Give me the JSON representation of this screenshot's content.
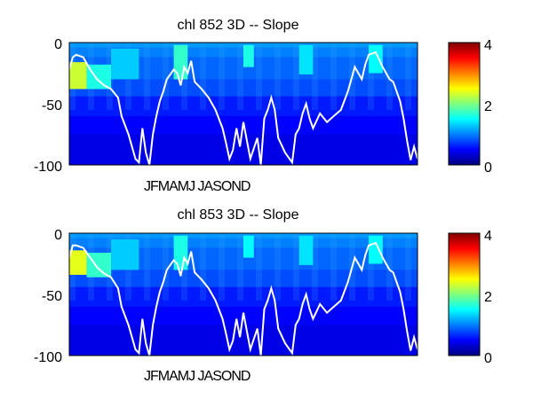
{
  "chart_data": [
    {
      "type": "heatmap",
      "title": "chl  852 3D    -- Slope",
      "xlabel": "JFMAMJ JASOND",
      "y_ticks": [
        0,
        -50,
        -100
      ],
      "ylim": [
        -100,
        0
      ],
      "colorbar": {
        "colormap": "jet",
        "range": [
          0,
          4
        ],
        "ticks": [
          0,
          2,
          4
        ]
      },
      "grid": false,
      "heat": {
        "base_value": 0.7,
        "depth_bands": [
          {
            "from": 0,
            "to": -4,
            "value": 1.1
          },
          {
            "from": -4,
            "to": -12,
            "value": 1.0
          },
          {
            "from": -12,
            "to": -30,
            "value": 0.9
          },
          {
            "from": -30,
            "to": -44,
            "value": 0.8
          },
          {
            "from": -44,
            "to": -60,
            "value": 0.6
          },
          {
            "from": -60,
            "to": -75,
            "value": 0.5
          },
          {
            "from": -75,
            "to": -100,
            "value": 0.4
          }
        ],
        "hotspots": [
          {
            "x0": 0,
            "x1": 0.05,
            "y0": -16,
            "y1": -38,
            "value": 2.3
          },
          {
            "x0": 0.05,
            "x1": 0.12,
            "y0": -18,
            "y1": -38,
            "value": 1.6
          },
          {
            "x0": 0.12,
            "x1": 0.2,
            "y0": -5,
            "y1": -30,
            "value": 1.3
          },
          {
            "x0": 0.3,
            "x1": 0.34,
            "y0": -2,
            "y1": -30,
            "value": 1.7
          },
          {
            "x0": 0.5,
            "x1": 0.53,
            "y0": -2,
            "y1": -20,
            "value": 1.6
          },
          {
            "x0": 0.66,
            "x1": 0.7,
            "y0": -2,
            "y1": -26,
            "value": 1.4
          },
          {
            "x0": 0.86,
            "x1": 0.9,
            "y0": -2,
            "y1": -25,
            "value": 1.5
          }
        ]
      },
      "line": {
        "color": "#ffffff",
        "x": [
          0,
          0.01,
          0.02,
          0.04,
          0.06,
          0.08,
          0.1,
          0.12,
          0.14,
          0.15,
          0.17,
          0.19,
          0.2,
          0.21,
          0.22,
          0.23,
          0.24,
          0.25,
          0.26,
          0.27,
          0.28,
          0.3,
          0.31,
          0.32,
          0.33,
          0.34,
          0.35,
          0.36,
          0.38,
          0.4,
          0.42,
          0.44,
          0.45,
          0.46,
          0.47,
          0.48,
          0.49,
          0.5,
          0.52,
          0.54,
          0.55,
          0.56,
          0.57,
          0.58,
          0.59,
          0.6,
          0.62,
          0.64,
          0.65,
          0.66,
          0.67,
          0.68,
          0.69,
          0.7,
          0.72,
          0.74,
          0.76,
          0.78,
          0.8,
          0.82,
          0.83,
          0.84,
          0.85,
          0.86,
          0.88,
          0.9,
          0.92,
          0.93,
          0.95,
          0.96,
          0.97,
          0.98,
          0.99,
          1
        ],
        "y": [
          -22,
          -12,
          -10,
          -12,
          -22,
          -30,
          -35,
          -38,
          -45,
          -60,
          -75,
          -95,
          -98,
          -70,
          -90,
          -100,
          -75,
          -60,
          -48,
          -40,
          -30,
          -22,
          -25,
          -35,
          -20,
          -25,
          -15,
          -32,
          -38,
          -45,
          -55,
          -70,
          -82,
          -95,
          -88,
          -70,
          -85,
          -65,
          -95,
          -78,
          -100,
          -62,
          -55,
          -45,
          -55,
          -78,
          -90,
          -98,
          -75,
          -70,
          -58,
          -50,
          -62,
          -70,
          -58,
          -65,
          -60,
          -55,
          -40,
          -20,
          -25,
          -30,
          -18,
          -10,
          -8,
          -20,
          -30,
          -32,
          -48,
          -62,
          -80,
          -96,
          -85,
          -95
        ]
      }
    },
    {
      "type": "heatmap",
      "title": "chl  853 3D    -- Slope",
      "xlabel": "JFMAMJ JASOND",
      "y_ticks": [
        0,
        -50,
        -100
      ],
      "ylim": [
        -100,
        0
      ],
      "colorbar": {
        "colormap": "jet",
        "range": [
          0,
          4
        ],
        "ticks": [
          0,
          2,
          4
        ]
      },
      "grid": false,
      "heat": {
        "base_value": 0.7,
        "depth_bands": [
          {
            "from": 0,
            "to": -4,
            "value": 1.1
          },
          {
            "from": -4,
            "to": -12,
            "value": 1.0
          },
          {
            "from": -12,
            "to": -30,
            "value": 0.9
          },
          {
            "from": -30,
            "to": -44,
            "value": 0.8
          },
          {
            "from": -44,
            "to": -60,
            "value": 0.6
          },
          {
            "from": -60,
            "to": -75,
            "value": 0.5
          },
          {
            "from": -75,
            "to": -100,
            "value": 0.4
          }
        ],
        "hotspots": [
          {
            "x0": 0,
            "x1": 0.05,
            "y0": -14,
            "y1": -34,
            "value": 2.4
          },
          {
            "x0": 0.05,
            "x1": 0.12,
            "y0": -16,
            "y1": -36,
            "value": 1.7
          },
          {
            "x0": 0.12,
            "x1": 0.2,
            "y0": -5,
            "y1": -30,
            "value": 1.3
          },
          {
            "x0": 0.3,
            "x1": 0.34,
            "y0": -2,
            "y1": -30,
            "value": 1.6
          },
          {
            "x0": 0.5,
            "x1": 0.53,
            "y0": -2,
            "y1": -20,
            "value": 1.5
          },
          {
            "x0": 0.66,
            "x1": 0.7,
            "y0": -2,
            "y1": -26,
            "value": 1.4
          },
          {
            "x0": 0.86,
            "x1": 0.9,
            "y0": -2,
            "y1": -25,
            "value": 1.5
          }
        ]
      },
      "line": {
        "color": "#ffffff",
        "x": [
          0,
          0.01,
          0.02,
          0.04,
          0.06,
          0.08,
          0.1,
          0.12,
          0.14,
          0.15,
          0.17,
          0.19,
          0.2,
          0.21,
          0.22,
          0.23,
          0.24,
          0.25,
          0.26,
          0.27,
          0.28,
          0.3,
          0.31,
          0.32,
          0.33,
          0.34,
          0.35,
          0.36,
          0.38,
          0.4,
          0.42,
          0.44,
          0.45,
          0.46,
          0.47,
          0.48,
          0.49,
          0.5,
          0.52,
          0.54,
          0.55,
          0.56,
          0.57,
          0.58,
          0.59,
          0.6,
          0.62,
          0.64,
          0.65,
          0.66,
          0.67,
          0.68,
          0.69,
          0.7,
          0.72,
          0.74,
          0.76,
          0.78,
          0.8,
          0.82,
          0.83,
          0.84,
          0.85,
          0.86,
          0.88,
          0.9,
          0.92,
          0.93,
          0.95,
          0.96,
          0.97,
          0.98,
          0.99,
          1
        ],
        "y": [
          -20,
          -10,
          -10,
          -12,
          -20,
          -28,
          -33,
          -36,
          -45,
          -60,
          -75,
          -95,
          -98,
          -70,
          -90,
          -100,
          -75,
          -60,
          -48,
          -40,
          -30,
          -22,
          -25,
          -35,
          -20,
          -25,
          -15,
          -32,
          -38,
          -45,
          -55,
          -70,
          -82,
          -95,
          -88,
          -70,
          -85,
          -65,
          -95,
          -78,
          -100,
          -62,
          -55,
          -45,
          -55,
          -78,
          -90,
          -98,
          -75,
          -70,
          -58,
          -50,
          -62,
          -70,
          -58,
          -65,
          -60,
          -55,
          -40,
          -20,
          -25,
          -30,
          -18,
          -10,
          -8,
          -20,
          -30,
          -32,
          -48,
          -62,
          -80,
          -96,
          -85,
          -95
        ]
      }
    }
  ]
}
